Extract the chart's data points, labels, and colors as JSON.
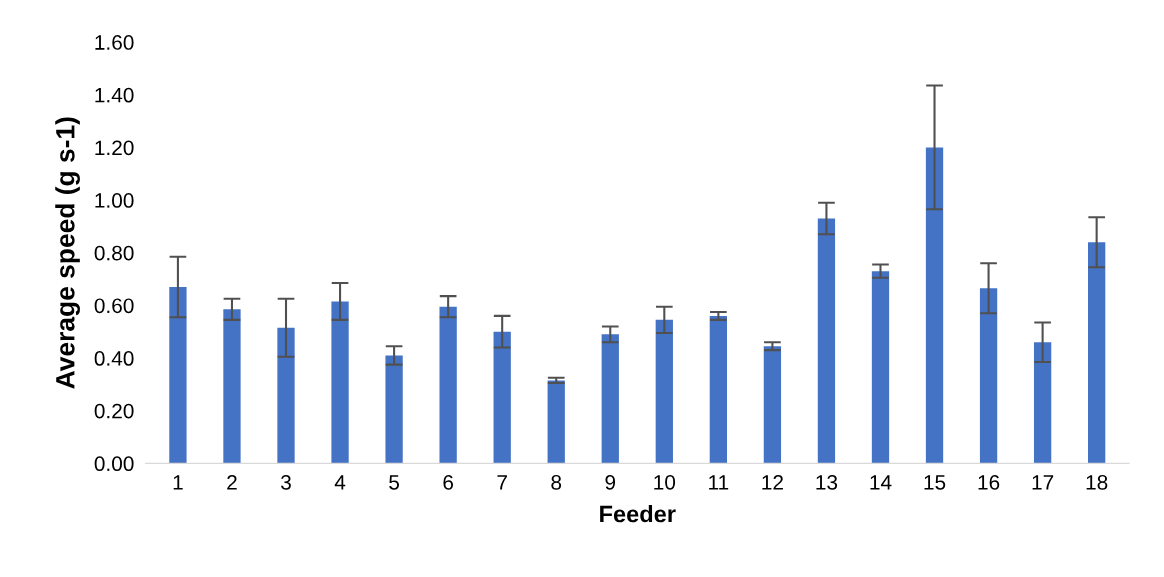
{
  "chart_data": {
    "type": "bar",
    "xlabel": "Feeder",
    "ylabel": "Average speed (g s-1)",
    "categories": [
      "1",
      "2",
      "3",
      "4",
      "5",
      "6",
      "7",
      "8",
      "9",
      "10",
      "11",
      "12",
      "13",
      "14",
      "15",
      "16",
      "17",
      "18"
    ],
    "values": [
      0.67,
      0.585,
      0.515,
      0.615,
      0.41,
      0.595,
      0.5,
      0.315,
      0.49,
      0.545,
      0.56,
      0.445,
      0.93,
      0.73,
      1.2,
      0.665,
      0.46,
      0.84
    ],
    "errors": [
      0.115,
      0.04,
      0.11,
      0.07,
      0.035,
      0.04,
      0.06,
      0.01,
      0.03,
      0.05,
      0.015,
      0.015,
      0.06,
      0.025,
      0.235,
      0.095,
      0.075,
      0.095
    ],
    "color": "#4472c4",
    "ylim": [
      0,
      1.6
    ],
    "yticks": [
      {
        "value": 0,
        "label": "0.00"
      },
      {
        "value": 0.2,
        "label": "0.20"
      },
      {
        "value": 0.4,
        "label": "0.40"
      },
      {
        "value": 0.6,
        "label": "0.60"
      },
      {
        "value": 0.8,
        "label": "0.80"
      },
      {
        "value": 1.0,
        "label": "1.00"
      },
      {
        "value": 1.2,
        "label": "1.20"
      },
      {
        "value": 1.4,
        "label": "1.40"
      },
      {
        "value": 1.6,
        "label": "1.60"
      }
    ],
    "grid": false,
    "legend": false
  }
}
